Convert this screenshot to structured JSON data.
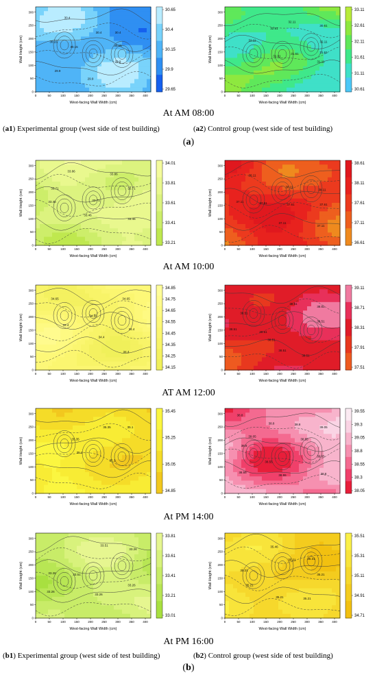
{
  "captions": {
    "times": [
      "At AM 08:00",
      "At AM 10:00",
      "AT AM 12:00",
      "At PM 14:00",
      "At PM 16:00"
    ],
    "a1": {
      "tag": "a1",
      "text": ") Experimental group (west side of test building)"
    },
    "a2": {
      "tag": "a2",
      "text": ") Control group (west side of test building)"
    },
    "b1": {
      "tag": "b1",
      "text": ") Experimental group (west side of test building)"
    },
    "b2": {
      "tag": "b2",
      "text": ") Control group (west side of test building)"
    },
    "part_a": "a",
    "part_b": "b"
  },
  "chart_data": [
    {
      "id": "exp-0800",
      "type": "heatmap",
      "xlabel": "West-facing Wall Width (cm)",
      "ylabel": "Wall Height (cm)",
      "xlim": [
        0,
        420
      ],
      "ylim": [
        0,
        320
      ],
      "xticks": [
        0,
        50,
        100,
        150,
        200,
        250,
        300,
        350,
        400
      ],
      "yticks": [
        0,
        50,
        100,
        150,
        200,
        250,
        300
      ],
      "colorbar": {
        "ticks": [
          "30.65",
          "30.4",
          "30.15",
          "29.9",
          "29.65"
        ],
        "min": 29.65,
        "max": 30.65,
        "colors": [
          "#1560ee",
          "#2f8ff2",
          "#4fb4f7",
          "#79d3fb",
          "#b9ecff"
        ]
      },
      "contour_labels": [
        {
          "x": 115,
          "y": 275,
          "text": "30.4"
        },
        {
          "x": 230,
          "y": 220,
          "text": "30.4"
        },
        {
          "x": 300,
          "y": 220,
          "text": "30.4"
        },
        {
          "x": 65,
          "y": 185,
          "text": "30.15"
        },
        {
          "x": 140,
          "y": 165,
          "text": "30.15"
        },
        {
          "x": 300,
          "y": 170,
          "text": "30.15"
        },
        {
          "x": 80,
          "y": 75,
          "text": "29.9"
        },
        {
          "x": 200,
          "y": 45,
          "text": "29.9"
        },
        {
          "x": 300,
          "y": 110,
          "text": "29.9"
        }
      ]
    },
    {
      "id": "ctl-0800",
      "type": "heatmap",
      "xlabel": "West-facing Wall Width (cm)",
      "ylabel": "Wall Height (cm)",
      "xlim": [
        0,
        420
      ],
      "ylim": [
        0,
        320
      ],
      "xticks": [
        0,
        50,
        100,
        150,
        200,
        250,
        300,
        350,
        400
      ],
      "yticks": [
        0,
        50,
        100,
        150,
        200,
        250,
        300
      ],
      "colorbar": {
        "ticks": [
          "33.11",
          "32.61",
          "32.11",
          "31.61",
          "31.11",
          "30.61"
        ],
        "min": 30.61,
        "max": 33.11,
        "colors": [
          "#4cc8f7",
          "#3fe0c8",
          "#3fe88a",
          "#5fe85a",
          "#8ee83f",
          "#b8ec3a"
        ]
      },
      "contour_labels": [
        {
          "x": 100,
          "y": 190,
          "text": "32.11"
        },
        {
          "x": 180,
          "y": 235,
          "text": "32.61"
        },
        {
          "x": 245,
          "y": 260,
          "text": "32.11"
        },
        {
          "x": 360,
          "y": 245,
          "text": "30.61"
        },
        {
          "x": 360,
          "y": 185,
          "text": "32.11"
        },
        {
          "x": 360,
          "y": 145,
          "text": "31.61"
        },
        {
          "x": 350,
          "y": 110,
          "text": "31.11"
        },
        {
          "x": 190,
          "y": 130,
          "text": "31.61"
        },
        {
          "x": 255,
          "y": 140,
          "text": "31.61"
        }
      ]
    },
    {
      "id": "exp-1000",
      "type": "heatmap",
      "xlabel": "West-facing Wall Width (cm)",
      "ylabel": "Wall Height (cm)",
      "xlim": [
        0,
        420
      ],
      "ylim": [
        0,
        320
      ],
      "xticks": [
        0,
        50,
        100,
        150,
        200,
        250,
        300,
        350,
        400
      ],
      "yticks": [
        0,
        50,
        100,
        150,
        200,
        250,
        300
      ],
      "colorbar": {
        "ticks": [
          "34.01",
          "33.81",
          "33.61",
          "33.41",
          "33.21"
        ],
        "min": 33.21,
        "max": 34.01,
        "colors": [
          "#bfe84f",
          "#cdee6a",
          "#dcf37f",
          "#e9f88e",
          "#f4fb9c"
        ]
      },
      "contour_labels": [
        {
          "x": 130,
          "y": 275,
          "text": "33.86"
        },
        {
          "x": 285,
          "y": 265,
          "text": "33.86"
        },
        {
          "x": 70,
          "y": 210,
          "text": "33.71"
        },
        {
          "x": 350,
          "y": 210,
          "text": "33.71"
        },
        {
          "x": 60,
          "y": 160,
          "text": "33.46"
        },
        {
          "x": 220,
          "y": 165,
          "text": "33.71"
        },
        {
          "x": 190,
          "y": 110,
          "text": "33.46"
        },
        {
          "x": 350,
          "y": 95,
          "text": "33.46"
        }
      ]
    },
    {
      "id": "ctl-1000",
      "type": "heatmap",
      "xlabel": "West-facing Wall Width (cm)",
      "ylabel": "Wall Height (cm)",
      "xlim": [
        0,
        420
      ],
      "ylim": [
        0,
        320
      ],
      "xticks": [
        0,
        50,
        100,
        150,
        200,
        250,
        300,
        350,
        400
      ],
      "yticks": [
        0,
        50,
        100,
        150,
        200,
        250,
        300
      ],
      "colorbar": {
        "ticks": [
          "38.61",
          "38.11",
          "37.61",
          "37.11",
          "36.61"
        ],
        "min": 36.61,
        "max": 38.61,
        "colors": [
          "#ef8a1e",
          "#ee5f1e",
          "#ec3a1e",
          "#e8221e",
          "#e0181e"
        ]
      },
      "contour_labels": [
        {
          "x": 100,
          "y": 260,
          "text": "38.11"
        },
        {
          "x": 235,
          "y": 215,
          "text": "38.11"
        },
        {
          "x": 355,
          "y": 205,
          "text": "38.11"
        },
        {
          "x": 55,
          "y": 160,
          "text": "37.11"
        },
        {
          "x": 140,
          "y": 155,
          "text": "37.61"
        },
        {
          "x": 240,
          "y": 150,
          "text": "37.61"
        },
        {
          "x": 360,
          "y": 150,
          "text": "37.61"
        },
        {
          "x": 210,
          "y": 80,
          "text": "37.11"
        },
        {
          "x": 350,
          "y": 70,
          "text": "37.11"
        }
      ]
    },
    {
      "id": "exp-1200",
      "type": "heatmap",
      "xlabel": "West-facing Wall Width (cm)",
      "ylabel": "Wall Height (cm)",
      "xlim": [
        0,
        420
      ],
      "ylim": [
        0,
        320
      ],
      "xticks": [
        0,
        50,
        100,
        150,
        200,
        250,
        300,
        350,
        400
      ],
      "yticks": [
        0,
        50,
        100,
        150,
        200,
        250,
        300
      ],
      "colorbar": {
        "ticks": [
          "34.85",
          "34.75",
          "34.65",
          "34.55",
          "34.45",
          "34.35",
          "34.25",
          "34.15"
        ],
        "min": 34.15,
        "max": 34.85,
        "colors": [
          "#f0f05a",
          "#f4f160",
          "#f8f468",
          "#fbf670",
          "#fdf878",
          "#fefa82",
          "#fffb8e",
          "#fffd9a"
        ]
      },
      "contour_labels": [
        {
          "x": 70,
          "y": 265,
          "text": "34.65"
        },
        {
          "x": 330,
          "y": 265,
          "text": "34.65"
        },
        {
          "x": 210,
          "y": 200,
          "text": "34.65"
        },
        {
          "x": 110,
          "y": 165,
          "text": "34.4"
        },
        {
          "x": 350,
          "y": 150,
          "text": "34.4"
        },
        {
          "x": 240,
          "y": 120,
          "text": "34.4"
        },
        {
          "x": 330,
          "y": 65,
          "text": "34.4"
        }
      ]
    },
    {
      "id": "ctl-1200",
      "type": "heatmap",
      "xlabel": "West-facing Wall Width (cm)",
      "ylabel": "Wall Height (cm)",
      "xlim": [
        0,
        420
      ],
      "ylim": [
        0,
        320
      ],
      "xticks": [
        0,
        50,
        100,
        150,
        200,
        250,
        300,
        350,
        400
      ],
      "yticks": [
        0,
        50,
        100,
        150,
        200,
        250,
        300
      ],
      "colorbar": {
        "ticks": [
          "39.11",
          "38.71",
          "38.31",
          "37.91",
          "37.51"
        ],
        "min": 37.51,
        "max": 39.11,
        "colors": [
          "#ee5a20",
          "#e8381e",
          "#e01c28",
          "#e8305a",
          "#f07aa0"
        ]
      },
      "contour_labels": [
        {
          "x": 70,
          "y": 210,
          "text": "38.51"
        },
        {
          "x": 250,
          "y": 245,
          "text": "38.51"
        },
        {
          "x": 350,
          "y": 235,
          "text": "38.51"
        },
        {
          "x": 30,
          "y": 150,
          "text": "38.51"
        },
        {
          "x": 350,
          "y": 180,
          "text": "38.51"
        },
        {
          "x": 140,
          "y": 140,
          "text": "38.51"
        },
        {
          "x": 170,
          "y": 110,
          "text": "38.51"
        },
        {
          "x": 210,
          "y": 70,
          "text": "38.51"
        },
        {
          "x": 295,
          "y": 50,
          "text": "38.51"
        }
      ]
    },
    {
      "id": "exp-1400",
      "type": "heatmap",
      "xlabel": "West-facing Wall Width (cm)",
      "ylabel": "Wall Height (cm)",
      "xlim": [
        0,
        420
      ],
      "ylim": [
        0,
        320
      ],
      "xticks": [
        0,
        50,
        100,
        150,
        200,
        250,
        300,
        350,
        400
      ],
      "yticks": [
        0,
        50,
        100,
        150,
        200,
        250,
        300
      ],
      "colorbar": {
        "ticks": [
          "35.45",
          "35.25",
          "35.05",
          "34.85"
        ],
        "min": 34.85,
        "max": 35.45,
        "colors": [
          "#f2c81e",
          "#f5dc28",
          "#f8ec34",
          "#fbf640"
        ]
      },
      "contour_labels": [
        {
          "x": 260,
          "y": 245,
          "text": "35.35"
        },
        {
          "x": 345,
          "y": 245,
          "text": "35.1"
        },
        {
          "x": 145,
          "y": 200,
          "text": "35.35"
        },
        {
          "x": 160,
          "y": 150,
          "text": "35.1"
        },
        {
          "x": 280,
          "y": 120,
          "text": "35.1"
        }
      ]
    },
    {
      "id": "ctl-1400",
      "type": "heatmap",
      "xlabel": "West-facing Wall Width (cm)",
      "ylabel": "Wall Height (cm)",
      "xlim": [
        0,
        420
      ],
      "ylim": [
        0,
        320
      ],
      "xticks": [
        0,
        50,
        100,
        150,
        200,
        250,
        300,
        350,
        400
      ],
      "yticks": [
        0,
        50,
        100,
        150,
        200,
        250,
        300
      ],
      "colorbar": {
        "ticks": [
          "39.55",
          "39.3",
          "39.05",
          "38.8",
          "38.55",
          "38.3",
          "38.05"
        ],
        "min": 38.05,
        "max": 39.55,
        "colors": [
          "#e81e3a",
          "#f0406a",
          "#f46a90",
          "#f690b0",
          "#f8b4cc",
          "#fad4e4",
          "#fbeaf2"
        ]
      },
      "contour_labels": [
        {
          "x": 55,
          "y": 290,
          "text": "38.8"
        },
        {
          "x": 170,
          "y": 260,
          "text": "38.8"
        },
        {
          "x": 265,
          "y": 255,
          "text": "38.8"
        },
        {
          "x": 360,
          "y": 245,
          "text": "39.05"
        },
        {
          "x": 100,
          "y": 210,
          "text": "39.05"
        },
        {
          "x": 70,
          "y": 175,
          "text": "38.8"
        },
        {
          "x": 290,
          "y": 200,
          "text": "38.55"
        },
        {
          "x": 350,
          "y": 135,
          "text": "39.05"
        },
        {
          "x": 160,
          "y": 115,
          "text": "38.55"
        },
        {
          "x": 65,
          "y": 75,
          "text": "38.55"
        },
        {
          "x": 210,
          "y": 65,
          "text": "38.55"
        },
        {
          "x": 360,
          "y": 70,
          "text": "38.8"
        }
      ]
    },
    {
      "id": "exp-1600",
      "type": "heatmap",
      "xlabel": "West-facing Wall Width (cm)",
      "ylabel": "Wall Height (cm)",
      "xlim": [
        0,
        420
      ],
      "ylim": [
        0,
        320
      ],
      "xticks": [
        0,
        50,
        100,
        150,
        200,
        250,
        300,
        350,
        400
      ],
      "yticks": [
        0,
        50,
        100,
        150,
        200,
        250,
        300
      ],
      "colorbar": {
        "ticks": [
          "33.81",
          "33.61",
          "33.41",
          "33.21",
          "33.01"
        ],
        "min": 33.01,
        "max": 33.81,
        "colors": [
          "#a8e040",
          "#b8e654",
          "#c8ec68",
          "#d8f27c",
          "#e6f690"
        ]
      },
      "contour_labels": [
        {
          "x": 250,
          "y": 270,
          "text": "33.51"
        },
        {
          "x": 355,
          "y": 255,
          "text": "33.26"
        },
        {
          "x": 60,
          "y": 165,
          "text": "33.26"
        },
        {
          "x": 150,
          "y": 160,
          "text": "33.51"
        },
        {
          "x": 55,
          "y": 95,
          "text": "33.26"
        },
        {
          "x": 230,
          "y": 85,
          "text": "33.26"
        },
        {
          "x": 350,
          "y": 120,
          "text": "33.26"
        }
      ]
    },
    {
      "id": "ctl-1600",
      "type": "heatmap",
      "xlabel": "West-facing Wall Width (cm)",
      "ylabel": "Wall Height (cm)",
      "xlim": [
        0,
        420
      ],
      "ylim": [
        0,
        320
      ],
      "xticks": [
        0,
        50,
        100,
        150,
        200,
        250,
        300,
        350,
        400
      ],
      "yticks": [
        0,
        50,
        100,
        150,
        200,
        250,
        300
      ],
      "colorbar": {
        "ticks": [
          "35.51",
          "35.31",
          "35.11",
          "34.91",
          "34.71"
        ],
        "min": 34.71,
        "max": 35.51,
        "colors": [
          "#f2c010",
          "#f4cc1e",
          "#f6d82c",
          "#f8e43a",
          "#fbf048"
        ]
      },
      "contour_labels": [
        {
          "x": 180,
          "y": 265,
          "text": "35.46"
        },
        {
          "x": 245,
          "y": 215,
          "text": "35.21"
        },
        {
          "x": 315,
          "y": 220,
          "text": "35.31"
        },
        {
          "x": 70,
          "y": 175,
          "text": "35.21"
        },
        {
          "x": 350,
          "y": 160,
          "text": "35.21"
        },
        {
          "x": 90,
          "y": 120,
          "text": "35.21"
        },
        {
          "x": 200,
          "y": 75,
          "text": "35.21"
        },
        {
          "x": 300,
          "y": 70,
          "text": "35.21"
        }
      ]
    }
  ]
}
